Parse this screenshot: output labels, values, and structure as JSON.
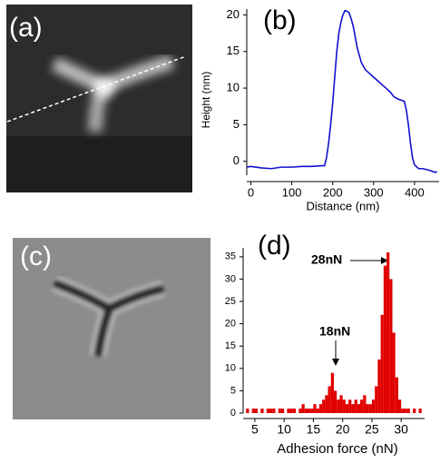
{
  "images": [
    {
      "label": "(a)"
    },
    {
      "label": "(c)"
    }
  ],
  "chart_data": [
    {
      "type": "line",
      "title": "(b)",
      "x_label": "Distance (nm)",
      "y_label": "Height (nm)",
      "color": "#1010d0",
      "x": [
        -10,
        0,
        25,
        50,
        75,
        100,
        125,
        150,
        170,
        180,
        185,
        190,
        195,
        200,
        205,
        210,
        215,
        220,
        225,
        230,
        235,
        240,
        245,
        250,
        255,
        260,
        265,
        270,
        280,
        290,
        300,
        310,
        320,
        330,
        340,
        350,
        360,
        365,
        370,
        375,
        380,
        385,
        390,
        395,
        400,
        410,
        420,
        435,
        450,
        455
      ],
      "values": [
        -0.8,
        -0.7,
        -0.9,
        -1,
        -0.8,
        -0.8,
        -0.7,
        -0.7,
        -0.6,
        -0.6,
        0.5,
        2.5,
        5,
        8,
        11.5,
        15,
        17.5,
        19,
        20,
        20.6,
        20.5,
        20.3,
        19.5,
        18.5,
        17,
        15.5,
        14.5,
        13.5,
        12.5,
        12,
        11.5,
        11,
        10.5,
        10,
        9.5,
        8.8,
        8.5,
        8.4,
        8.3,
        8.2,
        7,
        5,
        2.5,
        0.5,
        -0.5,
        -1,
        -1,
        -1.2,
        -1.5,
        -1.4
      ],
      "xlim": [
        -10,
        460
      ],
      "ylim": [
        -1.9,
        20.8
      ],
      "xticks": [
        0,
        100,
        200,
        300,
        400
      ],
      "yticks": [
        0,
        5,
        10,
        15,
        20
      ]
    },
    {
      "type": "histogram",
      "title": "(d)",
      "x_label": "Adhesion force (nN)",
      "color": "#e00000",
      "annotations": [
        "28nN",
        "18nN"
      ],
      "bins": [
        3.5,
        4,
        4.5,
        5,
        5.5,
        6,
        6.5,
        7,
        7.5,
        8,
        8.5,
        9,
        9.5,
        10,
        10.5,
        11,
        11.5,
        12,
        12.5,
        13,
        13.5,
        14,
        14.5,
        15,
        15.5,
        16,
        16.5,
        17,
        17.5,
        18,
        18.5,
        19,
        19.5,
        20,
        20.5,
        21,
        21.5,
        22,
        22.5,
        23,
        23.5,
        24,
        24.5,
        25,
        25.5,
        26,
        26.5,
        27,
        27.5,
        28,
        28.5,
        29,
        29.5,
        30,
        30.5,
        31,
        31.5,
        32,
        32.5,
        33,
        33.5
      ],
      "values": [
        1,
        0,
        1,
        1,
        0,
        1,
        0,
        1,
        1,
        1,
        0,
        1,
        1,
        0,
        1,
        1,
        1,
        0,
        1,
        2,
        1,
        1,
        1,
        2,
        1,
        2,
        3,
        4,
        6,
        9,
        5,
        3,
        4,
        3,
        2,
        3,
        2,
        3,
        2,
        3,
        4,
        2,
        2,
        3,
        6,
        12,
        22,
        33,
        36,
        30,
        18,
        8,
        3,
        1,
        1,
        1,
        0,
        1,
        0,
        1
      ],
      "xlim": [
        3,
        34
      ],
      "ylim": [
        0,
        37
      ],
      "xticks": [
        5,
        10,
        15,
        20,
        25,
        30
      ],
      "yticks": [
        0,
        5,
        10,
        15,
        20,
        25,
        30,
        35
      ]
    }
  ]
}
